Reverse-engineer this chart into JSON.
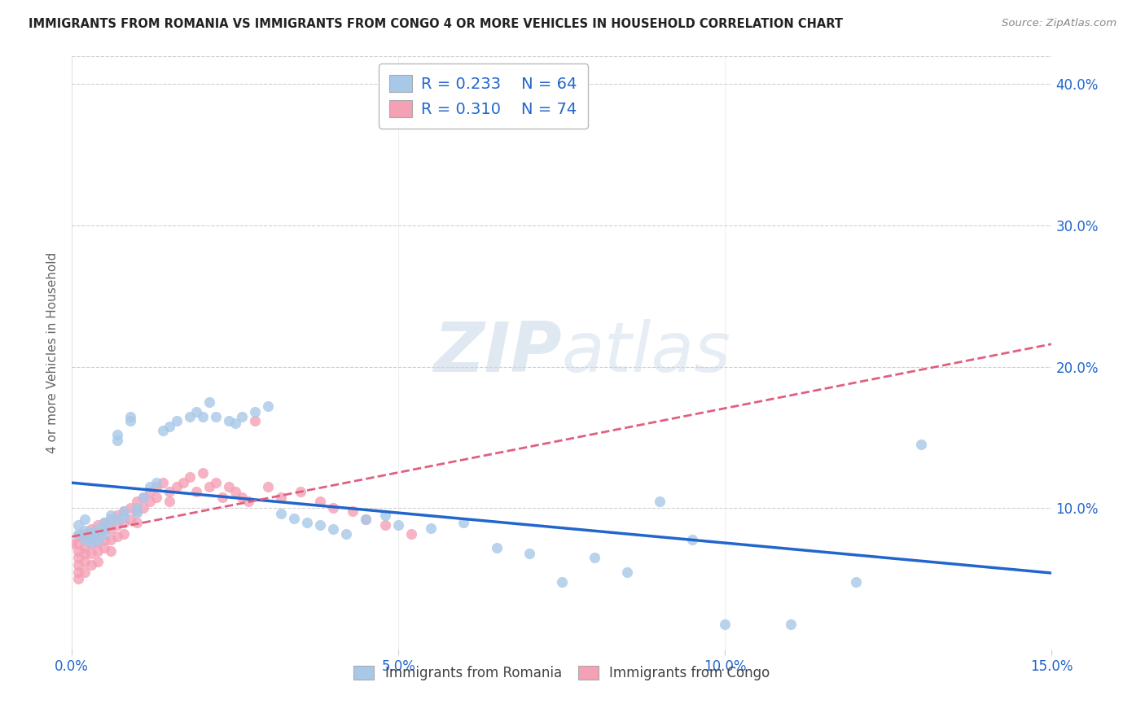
{
  "title": "IMMIGRANTS FROM ROMANIA VS IMMIGRANTS FROM CONGO 4 OR MORE VEHICLES IN HOUSEHOLD CORRELATION CHART",
  "source": "Source: ZipAtlas.com",
  "ylabel": "4 or more Vehicles in Household",
  "xlim": [
    0.0,
    0.15
  ],
  "ylim": [
    0.0,
    0.42
  ],
  "xtick_labels": [
    "0.0%",
    "5.0%",
    "10.0%",
    "15.0%"
  ],
  "xtick_vals": [
    0.0,
    0.05,
    0.1,
    0.15
  ],
  "ytick_labels": [
    "10.0%",
    "20.0%",
    "30.0%",
    "40.0%"
  ],
  "ytick_vals": [
    0.1,
    0.2,
    0.3,
    0.4
  ],
  "romania_color": "#a8c8e8",
  "congo_color": "#f4a0b5",
  "romania_line_color": "#2266cc",
  "congo_line_color": "#e06080",
  "R_romania": 0.233,
  "N_romania": 64,
  "R_congo": 0.31,
  "N_congo": 74,
  "legend_romania": "Immigrants from Romania",
  "legend_congo": "Immigrants from Congo",
  "watermark_zip": "ZIP",
  "watermark_atlas": "atlas",
  "background_color": "#ffffff",
  "grid_color": "#d0d0d0",
  "romania_x": [
    0.001,
    0.001,
    0.002,
    0.002,
    0.002,
    0.003,
    0.003,
    0.003,
    0.003,
    0.004,
    0.004,
    0.004,
    0.005,
    0.005,
    0.005,
    0.006,
    0.006,
    0.007,
    0.007,
    0.007,
    0.008,
    0.008,
    0.009,
    0.009,
    0.01,
    0.01,
    0.011,
    0.012,
    0.013,
    0.014,
    0.015,
    0.016,
    0.018,
    0.019,
    0.02,
    0.021,
    0.022,
    0.024,
    0.025,
    0.026,
    0.028,
    0.03,
    0.032,
    0.034,
    0.036,
    0.038,
    0.04,
    0.042,
    0.045,
    0.048,
    0.05,
    0.055,
    0.06,
    0.065,
    0.07,
    0.075,
    0.08,
    0.085,
    0.09,
    0.095,
    0.1,
    0.11,
    0.12,
    0.13
  ],
  "romania_y": [
    0.088,
    0.082,
    0.092,
    0.078,
    0.084,
    0.08,
    0.076,
    0.083,
    0.079,
    0.085,
    0.081,
    0.077,
    0.09,
    0.086,
    0.082,
    0.095,
    0.091,
    0.152,
    0.148,
    0.092,
    0.098,
    0.094,
    0.165,
    0.162,
    0.1,
    0.097,
    0.108,
    0.115,
    0.118,
    0.155,
    0.158,
    0.162,
    0.165,
    0.168,
    0.165,
    0.175,
    0.165,
    0.162,
    0.16,
    0.165,
    0.168,
    0.172,
    0.096,
    0.093,
    0.09,
    0.088,
    0.085,
    0.082,
    0.092,
    0.095,
    0.088,
    0.086,
    0.09,
    0.072,
    0.068,
    0.048,
    0.065,
    0.055,
    0.105,
    0.078,
    0.018,
    0.018,
    0.048,
    0.145
  ],
  "congo_x": [
    0.0,
    0.001,
    0.001,
    0.001,
    0.001,
    0.001,
    0.001,
    0.001,
    0.002,
    0.002,
    0.002,
    0.002,
    0.002,
    0.002,
    0.003,
    0.003,
    0.003,
    0.003,
    0.003,
    0.004,
    0.004,
    0.004,
    0.004,
    0.004,
    0.005,
    0.005,
    0.005,
    0.005,
    0.006,
    0.006,
    0.006,
    0.006,
    0.007,
    0.007,
    0.007,
    0.008,
    0.008,
    0.008,
    0.009,
    0.009,
    0.01,
    0.01,
    0.01,
    0.011,
    0.011,
    0.012,
    0.012,
    0.013,
    0.013,
    0.014,
    0.015,
    0.015,
    0.016,
    0.017,
    0.018,
    0.019,
    0.02,
    0.021,
    0.022,
    0.023,
    0.024,
    0.025,
    0.026,
    0.027,
    0.028,
    0.03,
    0.032,
    0.035,
    0.038,
    0.04,
    0.043,
    0.045,
    0.048,
    0.052
  ],
  "congo_y": [
    0.075,
    0.08,
    0.075,
    0.07,
    0.065,
    0.06,
    0.055,
    0.05,
    0.082,
    0.078,
    0.072,
    0.068,
    0.062,
    0.055,
    0.085,
    0.08,
    0.075,
    0.068,
    0.06,
    0.088,
    0.082,
    0.076,
    0.07,
    0.062,
    0.09,
    0.085,
    0.078,
    0.072,
    0.092,
    0.085,
    0.078,
    0.07,
    0.095,
    0.088,
    0.08,
    0.098,
    0.09,
    0.082,
    0.1,
    0.092,
    0.105,
    0.098,
    0.09,
    0.108,
    0.1,
    0.112,
    0.105,
    0.115,
    0.108,
    0.118,
    0.112,
    0.105,
    0.115,
    0.118,
    0.122,
    0.112,
    0.125,
    0.115,
    0.118,
    0.108,
    0.115,
    0.112,
    0.108,
    0.105,
    0.162,
    0.115,
    0.108,
    0.112,
    0.105,
    0.1,
    0.098,
    0.092,
    0.088,
    0.082
  ]
}
